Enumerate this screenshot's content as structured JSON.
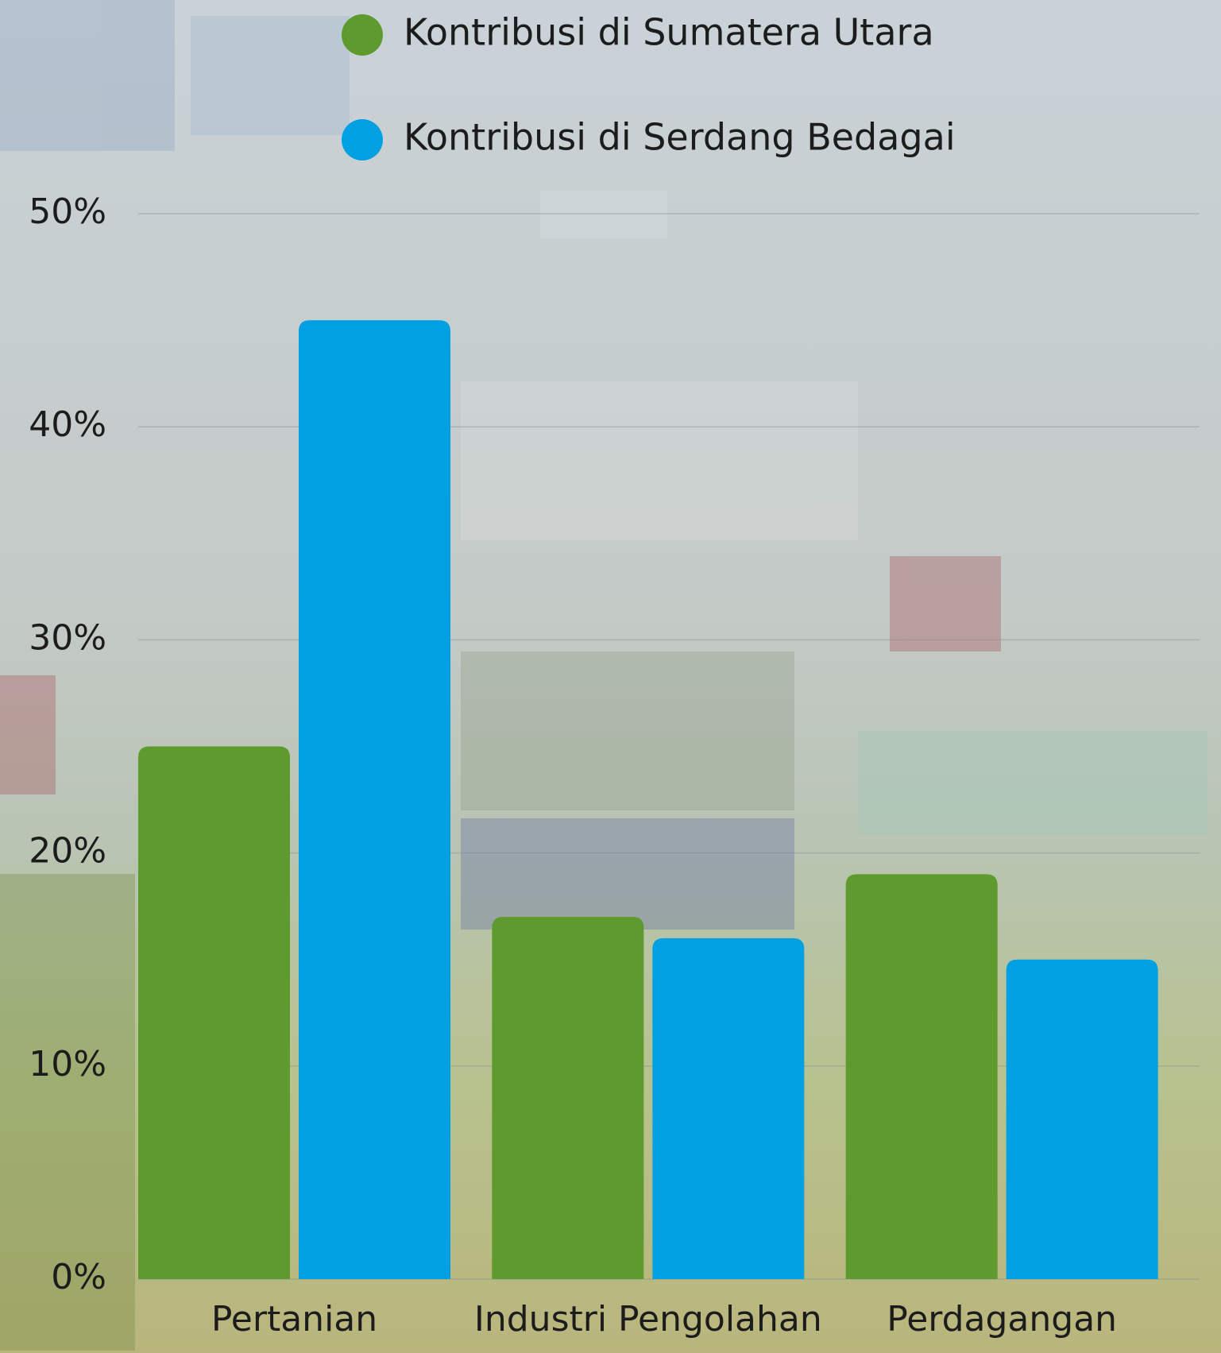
{
  "chart_data": {
    "type": "bar",
    "categories": [
      "Pertanian",
      "Industri Pengolahan",
      "Perdagangan"
    ],
    "series": [
      {
        "name": "Kontribusi di Sumatera Utara",
        "color": "#5f9a2e",
        "values": [
          25,
          17,
          19
        ]
      },
      {
        "name": "Kontribusi di Serdang Bedagai",
        "color": "#00a0e3",
        "values": [
          45,
          16,
          15
        ]
      }
    ],
    "ylim": [
      0,
      50
    ],
    "yticks": [
      {
        "value": 0,
        "label": "0%"
      },
      {
        "value": 10,
        "label": "10%"
      },
      {
        "value": 20,
        "label": "20%"
      },
      {
        "value": 30,
        "label": "30%"
      },
      {
        "value": 40,
        "label": "40%"
      },
      {
        "value": 50,
        "label": "50%"
      }
    ],
    "grid": true,
    "legend": "top"
  }
}
